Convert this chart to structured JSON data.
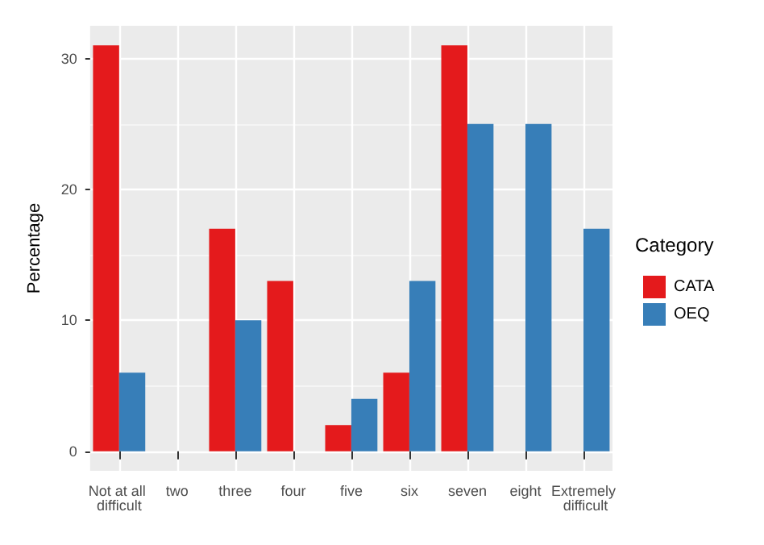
{
  "chart_data": {
    "type": "bar",
    "ylabel": "Percentage",
    "legend_title": "Category",
    "legend": "right",
    "grid": true,
    "categories": [
      "Not at all difficult",
      "two",
      "three",
      "four",
      "five",
      "six",
      "seven",
      "eight",
      "Extremely difficult"
    ],
    "series": [
      {
        "name": "CATA",
        "color": "#e41a1c",
        "values": [
          31,
          null,
          17,
          13,
          2,
          6,
          31,
          null,
          null
        ]
      },
      {
        "name": "OEQ",
        "color": "#377eb8",
        "values": [
          6,
          null,
          10,
          null,
          4,
          13,
          25,
          25,
          17
        ]
      }
    ],
    "ylim": [
      -1.5,
      32.5
    ],
    "yticks": [
      0,
      10,
      20,
      30
    ]
  }
}
